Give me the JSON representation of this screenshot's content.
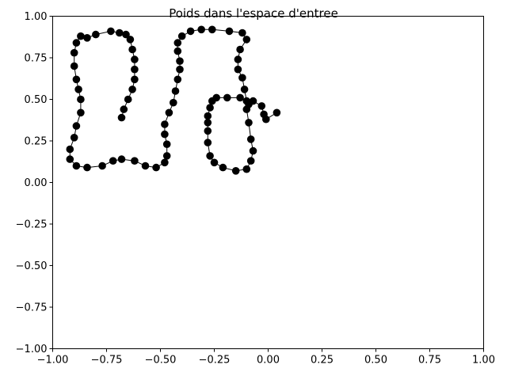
{
  "chart_data": {
    "type": "line",
    "title": "Poids dans l'espace d'entree",
    "xlabel": "",
    "ylabel": "",
    "xlim": [
      -1.0,
      1.0
    ],
    "ylim": [
      -1.0,
      1.0
    ],
    "grid": false,
    "x_ticks": [
      "−1.00",
      "−0.75",
      "−0.50",
      "−0.25",
      "0.00",
      "0.25",
      "0.50",
      "0.75",
      "1.00"
    ],
    "y_ticks": [
      "−1.00",
      "−0.75",
      "−0.50",
      "−0.25",
      "0.00",
      "0.25",
      "0.50",
      "0.75",
      "1.00"
    ],
    "series": [
      {
        "color": "#000000",
        "marker": "circle",
        "points": [
          [
            -0.68,
            0.39
          ],
          [
            -0.67,
            0.44
          ],
          [
            -0.65,
            0.5
          ],
          [
            -0.63,
            0.56
          ],
          [
            -0.62,
            0.62
          ],
          [
            -0.62,
            0.68
          ],
          [
            -0.62,
            0.74
          ],
          [
            -0.63,
            0.8
          ],
          [
            -0.64,
            0.86
          ],
          [
            -0.66,
            0.89
          ],
          [
            -0.69,
            0.9
          ],
          [
            -0.73,
            0.91
          ],
          [
            -0.8,
            0.89
          ],
          [
            -0.84,
            0.87
          ],
          [
            -0.87,
            0.88
          ],
          [
            -0.89,
            0.84
          ],
          [
            -0.9,
            0.78
          ],
          [
            -0.9,
            0.7
          ],
          [
            -0.89,
            0.62
          ],
          [
            -0.88,
            0.56
          ],
          [
            -0.87,
            0.5
          ],
          [
            -0.87,
            0.42
          ],
          [
            -0.89,
            0.34
          ],
          [
            -0.9,
            0.27
          ],
          [
            -0.92,
            0.2
          ],
          [
            -0.92,
            0.14
          ],
          [
            -0.89,
            0.1
          ],
          [
            -0.84,
            0.09
          ],
          [
            -0.77,
            0.1
          ],
          [
            -0.72,
            0.13
          ],
          [
            -0.68,
            0.14
          ],
          [
            -0.62,
            0.13
          ],
          [
            -0.57,
            0.1
          ],
          [
            -0.52,
            0.09
          ],
          [
            -0.48,
            0.12
          ],
          [
            -0.47,
            0.16
          ],
          [
            -0.47,
            0.23
          ],
          [
            -0.48,
            0.29
          ],
          [
            -0.48,
            0.35
          ],
          [
            -0.46,
            0.42
          ],
          [
            -0.44,
            0.48
          ],
          [
            -0.43,
            0.55
          ],
          [
            -0.42,
            0.62
          ],
          [
            -0.41,
            0.68
          ],
          [
            -0.41,
            0.73
          ],
          [
            -0.42,
            0.79
          ],
          [
            -0.42,
            0.84
          ],
          [
            -0.4,
            0.88
          ],
          [
            -0.36,
            0.91
          ],
          [
            -0.31,
            0.92
          ],
          [
            -0.26,
            0.92
          ],
          [
            -0.18,
            0.91
          ],
          [
            -0.12,
            0.9
          ],
          [
            -0.1,
            0.86
          ],
          [
            -0.13,
            0.8
          ],
          [
            -0.14,
            0.74
          ],
          [
            -0.14,
            0.68
          ],
          [
            -0.12,
            0.63
          ],
          [
            -0.11,
            0.56
          ],
          [
            -0.1,
            0.49
          ],
          [
            -0.13,
            0.51
          ],
          [
            -0.19,
            0.51
          ],
          [
            -0.24,
            0.51
          ],
          [
            -0.26,
            0.49
          ],
          [
            -0.27,
            0.45
          ],
          [
            -0.28,
            0.4
          ],
          [
            -0.28,
            0.36
          ],
          [
            -0.28,
            0.31
          ],
          [
            -0.28,
            0.24
          ],
          [
            -0.27,
            0.16
          ],
          [
            -0.25,
            0.12
          ],
          [
            -0.21,
            0.09
          ],
          [
            -0.15,
            0.07
          ],
          [
            -0.1,
            0.08
          ],
          [
            -0.08,
            0.13
          ],
          [
            -0.07,
            0.19
          ],
          [
            -0.08,
            0.26
          ],
          [
            -0.09,
            0.36
          ],
          [
            -0.1,
            0.44
          ],
          [
            -0.09,
            0.47
          ],
          [
            -0.07,
            0.49
          ],
          [
            -0.03,
            0.46
          ],
          [
            -0.02,
            0.41
          ],
          [
            -0.01,
            0.38
          ],
          [
            0.04,
            0.42
          ]
        ]
      }
    ]
  }
}
